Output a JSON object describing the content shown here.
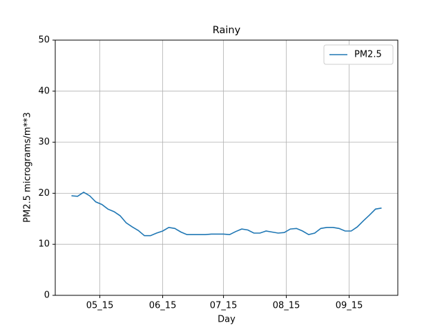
{
  "chart_data": {
    "type": "line",
    "title": "Rainy",
    "xlabel": "Day",
    "ylabel": "PM2.5 micrograms/m**3",
    "x": [
      "05_01",
      "05_04",
      "05_07",
      "05_10",
      "05_13",
      "05_16",
      "05_19",
      "05_22",
      "05_25",
      "05_28",
      "05_31",
      "06_03",
      "06_06",
      "06_09",
      "06_12",
      "06_15",
      "06_18",
      "06_21",
      "06_24",
      "06_27",
      "06_30",
      "07_03",
      "07_06",
      "07_09",
      "07_12",
      "07_15",
      "07_18",
      "07_21",
      "07_24",
      "07_27",
      "07_30",
      "08_02",
      "08_05",
      "08_08",
      "08_11",
      "08_14",
      "08_17",
      "08_20",
      "08_23",
      "08_26",
      "08_29",
      "09_01",
      "09_04",
      "09_07",
      "09_10",
      "09_13",
      "09_16",
      "09_19",
      "09_22",
      "09_25",
      "09_28",
      "10_01"
    ],
    "series": [
      {
        "name": "PM2.5",
        "color": "#1f77b4",
        "values": [
          19.5,
          19.4,
          20.2,
          19.5,
          18.3,
          17.8,
          16.9,
          16.4,
          15.6,
          14.2,
          13.4,
          12.7,
          11.7,
          11.7,
          12.2,
          12.6,
          13.3,
          13.1,
          12.4,
          11.9,
          11.9,
          11.9,
          11.9,
          12.0,
          12.0,
          12.0,
          11.9,
          12.5,
          13.0,
          12.8,
          12.2,
          12.2,
          12.6,
          12.4,
          12.2,
          12.3,
          13.0,
          13.1,
          12.6,
          11.9,
          12.2,
          13.1,
          13.3,
          13.3,
          13.1,
          12.6,
          12.6,
          13.4,
          14.6,
          15.7,
          16.9,
          17.1
        ]
      }
    ],
    "xlim": [
      "04_23",
      "10_09"
    ],
    "xticks": [
      "05_15",
      "06_15",
      "07_15",
      "08_15",
      "09_15"
    ],
    "ylim": [
      0,
      50
    ],
    "yticks": [
      0,
      10,
      20,
      30,
      40,
      50
    ],
    "grid": true,
    "legend": "upper right"
  }
}
